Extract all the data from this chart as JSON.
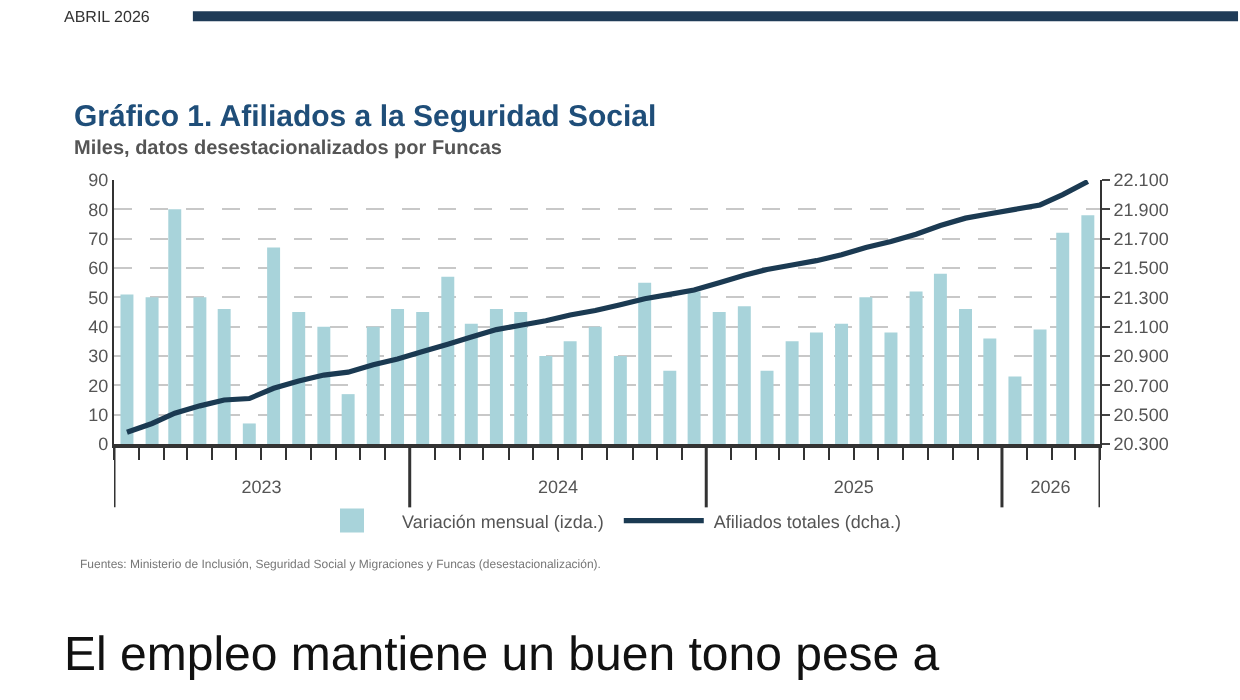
{
  "chart_data": {
    "type": "bar",
    "title": "Gráfico 1. Afiliados a la Seguridad Social",
    "subtitle": "Miles, datos desestacionalizados por Funcas",
    "x": [
      "2023-01",
      "2023-02",
      "2023-03",
      "2023-04",
      "2023-05",
      "2023-06",
      "2023-07",
      "2023-08",
      "2023-09",
      "2023-10",
      "2023-11",
      "2023-12",
      "2024-01",
      "2024-02",
      "2024-03",
      "2024-04",
      "2024-05",
      "2024-06",
      "2024-07",
      "2024-08",
      "2024-09",
      "2024-10",
      "2024-11",
      "2024-12",
      "2025-01",
      "2025-02",
      "2025-03",
      "2025-04",
      "2025-05",
      "2025-06",
      "2025-07",
      "2025-08",
      "2025-09",
      "2025-10",
      "2025-11",
      "2025-12",
      "2026-01",
      "2026-02",
      "2026-03",
      "2026-04"
    ],
    "series": [
      {
        "name": "Variación mensual (izda.)",
        "axis": "y",
        "color": "#a8d3da",
        "values": [
          51,
          50,
          80,
          50,
          46,
          7,
          67,
          45,
          40,
          17,
          40,
          46,
          45,
          57,
          41,
          46,
          45,
          30,
          35,
          40,
          30,
          55,
          25,
          52,
          45,
          47,
          25,
          35,
          38,
          41,
          50,
          38,
          52,
          58,
          46,
          36,
          23,
          39,
          72,
          78
        ]
      },
      {
        "name": "Afiliados totales (dcha.)",
        "type": "line",
        "axis": "y2",
        "color": "#1b3a52",
        "values": [
          20380,
          20440,
          20510,
          20560,
          20600,
          20610,
          20680,
          20730,
          20770,
          20790,
          20840,
          20880,
          20930,
          20980,
          21030,
          21080,
          21110,
          21140,
          21180,
          21210,
          21250,
          21290,
          21320,
          21350,
          21400,
          21450,
          21490,
          21520,
          21550,
          21590,
          21640,
          21680,
          21730,
          21790,
          21840,
          21870,
          21900,
          21930,
          22000,
          22090
        ]
      }
    ],
    "xlim": [
      "2022-12-16",
      "2026-04-16"
    ],
    "xticks": [
      {
        "value": "2023-06-16",
        "label": "2023"
      },
      {
        "value": "2024-06-16",
        "label": "2024"
      },
      {
        "value": "2025-06-16",
        "label": "2025"
      },
      {
        "value": "2026-02-14",
        "label": "2026"
      }
    ],
    "ylim": [
      0,
      90
    ],
    "yticks": [
      0,
      10,
      20,
      30,
      40,
      50,
      60,
      70,
      80,
      90
    ],
    "y2lim": [
      20300,
      22100
    ],
    "y2ticks": [
      {
        "value": 20300,
        "label": "20.300"
      },
      {
        "value": 20500,
        "label": "20.500"
      },
      {
        "value": 20700,
        "label": "20.700"
      },
      {
        "value": 20900,
        "label": "20.900"
      },
      {
        "value": 21100,
        "label": "21.100"
      },
      {
        "value": 21300,
        "label": "21.300"
      },
      {
        "value": 21500,
        "label": "21.500"
      },
      {
        "value": 21700,
        "label": "21.700"
      },
      {
        "value": 21900,
        "label": "21.900"
      },
      {
        "value": 22100,
        "label": "22.100"
      }
    ],
    "grid": "y",
    "legend": "bottom",
    "annotations": [
      "ABRIL 2026",
      "Fuentes: Ministerio de Inclusión, Seguridad Social y Migraciones y Funcas (desestacionalización).",
      "El empleo mantiene un buen tono pese a"
    ]
  }
}
